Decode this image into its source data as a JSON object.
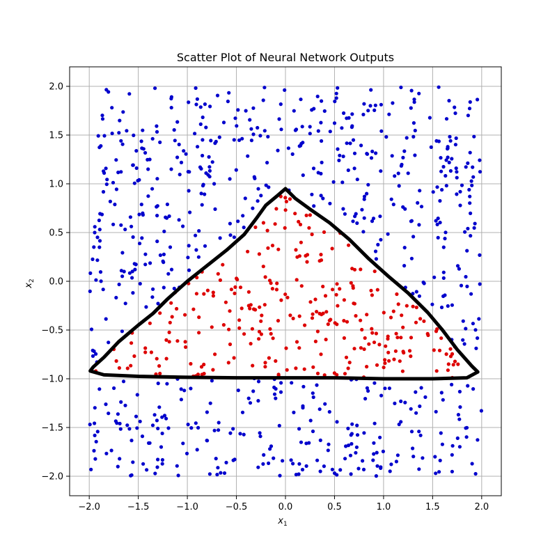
{
  "chart_data": {
    "type": "scatter",
    "title": "Scatter Plot of Neural Network Outputs",
    "xlabel": "x",
    "xlabel_sub": "1",
    "ylabel": "x",
    "ylabel_sub": "2",
    "xlim": [
      -2.2,
      2.2
    ],
    "ylim": [
      -2.2,
      2.2
    ],
    "xticks": [
      -2.0,
      -1.5,
      -1.0,
      -0.5,
      0.0,
      0.5,
      1.0,
      1.5,
      2.0
    ],
    "xtick_labels": [
      "−2.0",
      "−1.5",
      "−1.0",
      "−0.5",
      "0.0",
      "0.5",
      "1.0",
      "1.5",
      "2.0"
    ],
    "yticks": [
      -2.0,
      -1.5,
      -1.0,
      -0.5,
      0.0,
      0.5,
      1.0,
      1.5,
      2.0
    ],
    "ytick_labels": [
      "−2.0",
      "−1.5",
      "−1.0",
      "−0.5",
      "0.0",
      "0.5",
      "1.0",
      "1.5",
      "2.0"
    ],
    "grid": true,
    "colors": {
      "outside": "#0000cc",
      "inside": "#dd0000",
      "boundary": "#000000",
      "grid": "#b0b0b0"
    },
    "sampling": {
      "x_range": [
        -2.0,
        2.0
      ],
      "y_range": [
        -2.0,
        2.0
      ],
      "n_points": 1000
    },
    "boundary": [
      [
        -1.99,
        -0.92
      ],
      [
        -1.96,
        -0.88
      ],
      [
        -1.85,
        -0.78
      ],
      [
        -1.7,
        -0.62
      ],
      [
        -1.5,
        -0.45
      ],
      [
        -1.35,
        -0.33
      ],
      [
        -1.2,
        -0.18
      ],
      [
        -1.0,
        0.0
      ],
      [
        -0.8,
        0.16
      ],
      [
        -0.6,
        0.32
      ],
      [
        -0.42,
        0.48
      ],
      [
        -0.3,
        0.64
      ],
      [
        -0.2,
        0.78
      ],
      [
        -0.08,
        0.88
      ],
      [
        0.0,
        0.95
      ],
      [
        0.1,
        0.85
      ],
      [
        0.25,
        0.74
      ],
      [
        0.45,
        0.6
      ],
      [
        0.65,
        0.43
      ],
      [
        0.85,
        0.23
      ],
      [
        1.05,
        0.05
      ],
      [
        1.25,
        -0.12
      ],
      [
        1.45,
        -0.32
      ],
      [
        1.6,
        -0.5
      ],
      [
        1.75,
        -0.7
      ],
      [
        1.9,
        -0.87
      ],
      [
        1.96,
        -0.93
      ],
      [
        1.85,
        -0.99
      ],
      [
        1.5,
        -1.0
      ],
      [
        1.0,
        -1.0
      ],
      [
        0.5,
        -0.99
      ],
      [
        0.0,
        -0.99
      ],
      [
        -0.5,
        -0.99
      ],
      [
        -1.0,
        -0.985
      ],
      [
        -1.5,
        -0.975
      ],
      [
        -1.85,
        -0.96
      ],
      [
        -1.99,
        -0.92
      ]
    ]
  }
}
